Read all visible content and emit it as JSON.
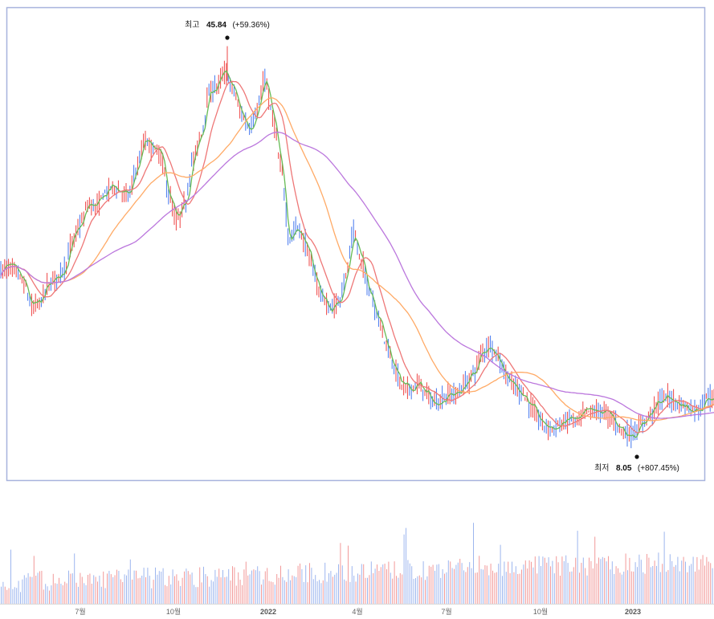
{
  "chart_data": {
    "type": "candlestick",
    "price_series": [
      {
        "x": 0,
        "y": 24.3
      },
      {
        "x": 10,
        "y": 24.6
      },
      {
        "x": 20,
        "y": 24.3
      },
      {
        "x": 30,
        "y": 23.0
      },
      {
        "x": 40,
        "y": 20.8
      },
      {
        "x": 50,
        "y": 21.3
      },
      {
        "x": 60,
        "y": 22.9
      },
      {
        "x": 70,
        "y": 23.6
      },
      {
        "x": 80,
        "y": 24.5
      },
      {
        "x": 90,
        "y": 27.1
      },
      {
        "x": 100,
        "y": 28.7
      },
      {
        "x": 110,
        "y": 30.6
      },
      {
        "x": 120,
        "y": 30.5
      },
      {
        "x": 130,
        "y": 31.7
      },
      {
        "x": 140,
        "y": 32.4
      },
      {
        "x": 150,
        "y": 31.9
      },
      {
        "x": 160,
        "y": 31.5
      },
      {
        "x": 170,
        "y": 34.1
      },
      {
        "x": 180,
        "y": 36.7
      },
      {
        "x": 190,
        "y": 36.1
      },
      {
        "x": 200,
        "y": 35.4
      },
      {
        "x": 210,
        "y": 31.5
      },
      {
        "x": 220,
        "y": 29.1
      },
      {
        "x": 230,
        "y": 30.6
      },
      {
        "x": 240,
        "y": 34.9
      },
      {
        "x": 250,
        "y": 37.2
      },
      {
        "x": 260,
        "y": 41.2
      },
      {
        "x": 270,
        "y": 42.1
      },
      {
        "x": 280,
        "y": 43.3
      },
      {
        "x": 290,
        "y": 41.8
      },
      {
        "x": 300,
        "y": 39.4
      },
      {
        "x": 310,
        "y": 38.0
      },
      {
        "x": 320,
        "y": 39.6
      },
      {
        "x": 330,
        "y": 42.7
      },
      {
        "x": 340,
        "y": 38.8
      },
      {
        "x": 350,
        "y": 34.1
      },
      {
        "x": 360,
        "y": 27.4
      },
      {
        "x": 370,
        "y": 28.5
      },
      {
        "x": 380,
        "y": 26.9
      },
      {
        "x": 390,
        "y": 24.3
      },
      {
        "x": 400,
        "y": 22.0
      },
      {
        "x": 410,
        "y": 20.6
      },
      {
        "x": 420,
        "y": 21.1
      },
      {
        "x": 430,
        "y": 23.6
      },
      {
        "x": 440,
        "y": 27.9
      },
      {
        "x": 450,
        "y": 25.1
      },
      {
        "x": 460,
        "y": 22.5
      },
      {
        "x": 470,
        "y": 20.1
      },
      {
        "x": 480,
        "y": 17.5
      },
      {
        "x": 490,
        "y": 15.2
      },
      {
        "x": 500,
        "y": 13.3
      },
      {
        "x": 510,
        "y": 12.9
      },
      {
        "x": 520,
        "y": 13.4
      },
      {
        "x": 530,
        "y": 12.6
      },
      {
        "x": 540,
        "y": 11.6
      },
      {
        "x": 550,
        "y": 11.9
      },
      {
        "x": 560,
        "y": 12.4
      },
      {
        "x": 570,
        "y": 12.5
      },
      {
        "x": 580,
        "y": 13.5
      },
      {
        "x": 590,
        "y": 14.5
      },
      {
        "x": 600,
        "y": 16.4
      },
      {
        "x": 610,
        "y": 17.2
      },
      {
        "x": 620,
        "y": 16.0
      },
      {
        "x": 630,
        "y": 14.3
      },
      {
        "x": 640,
        "y": 13.2
      },
      {
        "x": 650,
        "y": 12.6
      },
      {
        "x": 660,
        "y": 11.4
      },
      {
        "x": 670,
        "y": 10.1
      },
      {
        "x": 680,
        "y": 9.3
      },
      {
        "x": 690,
        "y": 9.2
      },
      {
        "x": 700,
        "y": 9.6
      },
      {
        "x": 710,
        "y": 10.1
      },
      {
        "x": 720,
        "y": 9.9
      },
      {
        "x": 730,
        "y": 10.8
      },
      {
        "x": 740,
        "y": 10.8
      },
      {
        "x": 750,
        "y": 10.8
      },
      {
        "x": 760,
        "y": 10.3
      },
      {
        "x": 770,
        "y": 9.4
      },
      {
        "x": 780,
        "y": 8.6
      },
      {
        "x": 790,
        "y": 8.7
      },
      {
        "x": 800,
        "y": 9.7
      },
      {
        "x": 810,
        "y": 10.6
      },
      {
        "x": 820,
        "y": 11.7
      },
      {
        "x": 830,
        "y": 12.2
      },
      {
        "x": 840,
        "y": 11.7
      },
      {
        "x": 850,
        "y": 11.4
      },
      {
        "x": 860,
        "y": 11.0
      },
      {
        "x": 870,
        "y": 11.0
      },
      {
        "x": 880,
        "y": 12.2
      },
      {
        "x": 889,
        "y": 11.8
      }
    ],
    "x_ticks": [
      {
        "x": 100,
        "label": "7월"
      },
      {
        "x": 216,
        "label": "10월"
      },
      {
        "x": 334,
        "label": "2022",
        "bold": true
      },
      {
        "x": 445,
        "label": "4월"
      },
      {
        "x": 556,
        "label": "7월"
      },
      {
        "x": 673,
        "label": "10월"
      },
      {
        "x": 788,
        "label": "2023",
        "bold": true
      }
    ],
    "annotations": {
      "high": {
        "label": "최고",
        "value": "45.84",
        "pct": "(+59.36%)",
        "x": 283,
        "y": 45.84
      },
      "low": {
        "label": "최저",
        "value": "8.05",
        "pct": "(+807.45%)",
        "x": 793,
        "y": 8.05
      }
    },
    "moving_averages": [
      {
        "period": 5,
        "color": "#66bb55"
      },
      {
        "period": 20,
        "color": "#ee7777"
      },
      {
        "period": 60,
        "color": "#ffaa66"
      },
      {
        "period": 120,
        "color": "#bb77dd"
      }
    ],
    "colors": {
      "up": "#ee4444",
      "down": "#4477ee",
      "frame": "#a7b3dd",
      "vol_up": "#f29a9a",
      "vol_down": "#9db6ee"
    },
    "volume": {
      "type": "bar",
      "note_units": "relative"
    }
  }
}
